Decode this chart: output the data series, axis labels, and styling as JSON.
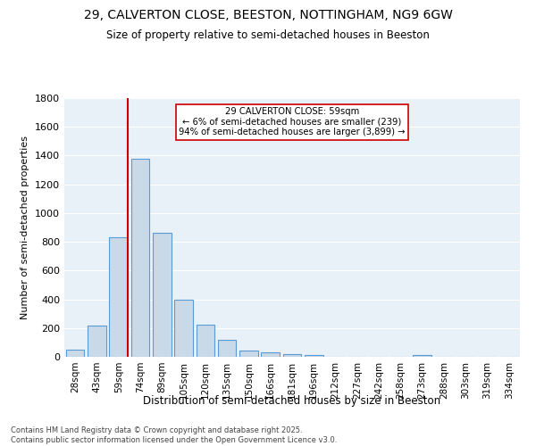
{
  "title": "29, CALVERTON CLOSE, BEESTON, NOTTINGHAM, NG9 6GW",
  "subtitle": "Size of property relative to semi-detached houses in Beeston",
  "xlabel": "Distribution of semi-detached houses by size in Beeston",
  "ylabel": "Number of semi-detached properties",
  "bar_labels": [
    "28sqm",
    "43sqm",
    "59sqm",
    "74sqm",
    "89sqm",
    "105sqm",
    "120sqm",
    "135sqm",
    "150sqm",
    "166sqm",
    "181sqm",
    "196sqm",
    "212sqm",
    "227sqm",
    "242sqm",
    "258sqm",
    "273sqm",
    "288sqm",
    "303sqm",
    "319sqm",
    "334sqm"
  ],
  "bar_values": [
    50,
    220,
    830,
    1380,
    860,
    395,
    225,
    120,
    45,
    28,
    20,
    14,
    0,
    0,
    0,
    0,
    15,
    0,
    0,
    0,
    0
  ],
  "bar_color": "#c9d9e8",
  "bar_edge_color": "#5b9bd5",
  "vline_color": "#cc0000",
  "annotation_text": "29 CALVERTON CLOSE: 59sqm\n← 6% of semi-detached houses are smaller (239)\n94% of semi-detached houses are larger (3,899) →",
  "ylim": [
    0,
    1800
  ],
  "yticks": [
    0,
    200,
    400,
    600,
    800,
    1000,
    1200,
    1400,
    1600,
    1800
  ],
  "bg_color": "#e8f0f8",
  "grid_color": "#ffffff",
  "footer_line1": "Contains HM Land Registry data © Crown copyright and database right 2025.",
  "footer_line2": "Contains public sector information licensed under the Open Government Licence v3.0."
}
